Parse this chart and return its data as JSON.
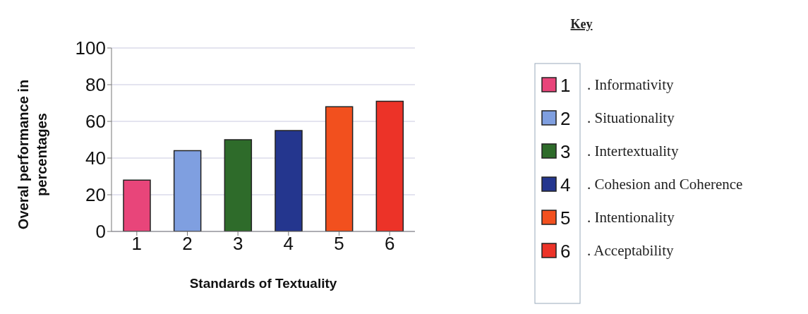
{
  "chart_data": {
    "type": "bar",
    "xlabel": "Standards of Textuality",
    "ylabel": "Overal performance in percentages",
    "categories": [
      "1",
      "2",
      "3",
      "4",
      "5",
      "6"
    ],
    "series": [
      {
        "name": "1",
        "color": "#e8457a",
        "values": [
          28,
          null,
          null,
          null,
          null,
          null
        ]
      },
      {
        "name": "2",
        "color": "#7f9fe0",
        "values": [
          null,
          44,
          null,
          null,
          null,
          null
        ]
      },
      {
        "name": "3",
        "color": "#2e6b2a",
        "values": [
          null,
          null,
          50,
          null,
          null,
          null
        ]
      },
      {
        "name": "4",
        "color": "#24368e",
        "values": [
          null,
          null,
          null,
          55,
          null,
          null
        ]
      },
      {
        "name": "5",
        "color": "#f2501e",
        "values": [
          null,
          null,
          null,
          null,
          68,
          null
        ]
      },
      {
        "name": "6",
        "color": "#ec3328",
        "values": [
          null,
          null,
          null,
          null,
          null,
          71
        ]
      }
    ],
    "ylim": [
      0,
      100
    ],
    "yticks": [
      0,
      20,
      40,
      60,
      80,
      100
    ],
    "grid": "y",
    "legend": "right",
    "legend_title": "Key",
    "annotations": [
      ". Informativity",
      ". Situationality",
      ". Intertextuality",
      ". Cohesion and Coherence",
      ". Intentionality",
      ". Acceptability"
    ]
  }
}
